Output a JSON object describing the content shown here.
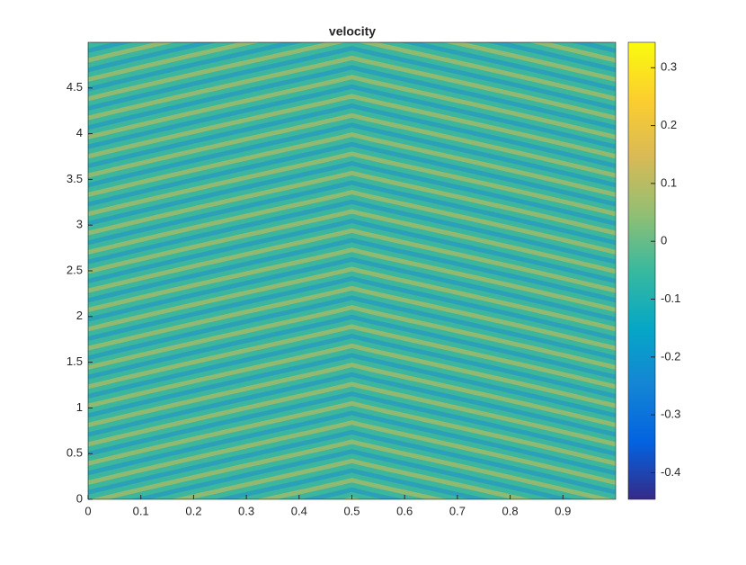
{
  "chart_data": {
    "type": "heatmap",
    "title": "velocity",
    "xlim": [
      0,
      1
    ],
    "xticks": [
      0,
      0.1,
      0.2,
      0.3,
      0.4,
      0.5,
      0.6,
      0.7,
      0.8,
      0.9
    ],
    "ylim": [
      0,
      5
    ],
    "yticks": [
      0,
      0.5,
      1,
      1.5,
      2,
      2.5,
      3,
      3.5,
      4,
      4.5
    ],
    "clim": [
      -0.446,
      0.344
    ],
    "cticks": [
      -0.4,
      -0.3,
      -0.2,
      -0.1,
      0,
      0.1,
      0.2,
      0.3
    ],
    "colormap": [
      "#352a87",
      "#0363e1",
      "#1485d4",
      "#06a7c6",
      "#38b99e",
      "#92bf73",
      "#d9ba56",
      "#fcce2e",
      "#f9fb0e"
    ]
  }
}
